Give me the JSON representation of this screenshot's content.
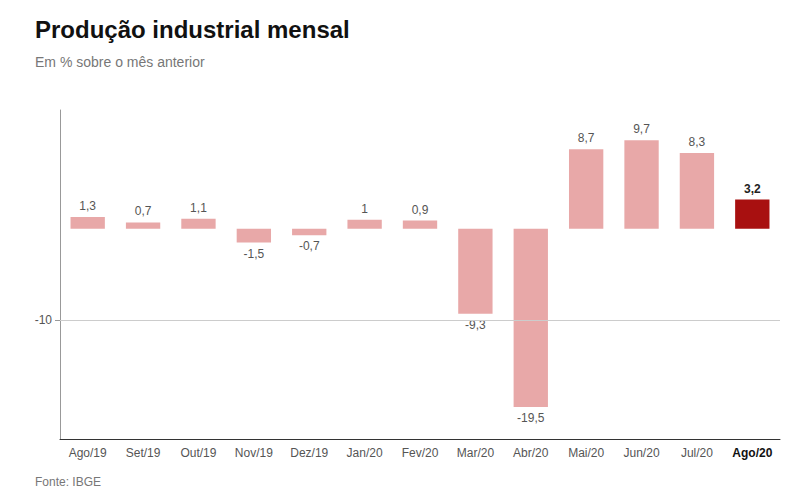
{
  "chart_data": {
    "type": "bar",
    "title": "Produção industrial mensal",
    "subtitle": "Em % sobre o mês anterior",
    "source": "Fonte: IBGE",
    "categories": [
      "Ago/19",
      "Set/19",
      "Out/19",
      "Nov/19",
      "Dez/19",
      "Jan/20",
      "Fev/20",
      "Mar/20",
      "Abr/20",
      "Mai/20",
      "Jun/20",
      "Jul/20",
      "Ago/20"
    ],
    "values": [
      1.3,
      0.7,
      1.1,
      -1.5,
      -0.7,
      1.0,
      0.9,
      -9.3,
      -19.5,
      8.7,
      9.7,
      8.3,
      3.2
    ],
    "value_labels": [
      "1,3",
      "0,7",
      "1,1",
      "-1,5",
      "-0,7",
      "1",
      "0,9",
      "-9,3",
      "-19,5",
      "8,7",
      "9,7",
      "8,3",
      "3,2"
    ],
    "colors": [
      "#e8a8a8",
      "#e8a8a8",
      "#e8a8a8",
      "#e8a8a8",
      "#e8a8a8",
      "#e8a8a8",
      "#e8a8a8",
      "#e8a8a8",
      "#e8a8a8",
      "#e8a8a8",
      "#e8a8a8",
      "#e8a8a8",
      "#a81010"
    ],
    "ylim": [
      -23,
      13
    ],
    "yticks": [
      -10
    ],
    "grid": true,
    "data_labels": true
  }
}
